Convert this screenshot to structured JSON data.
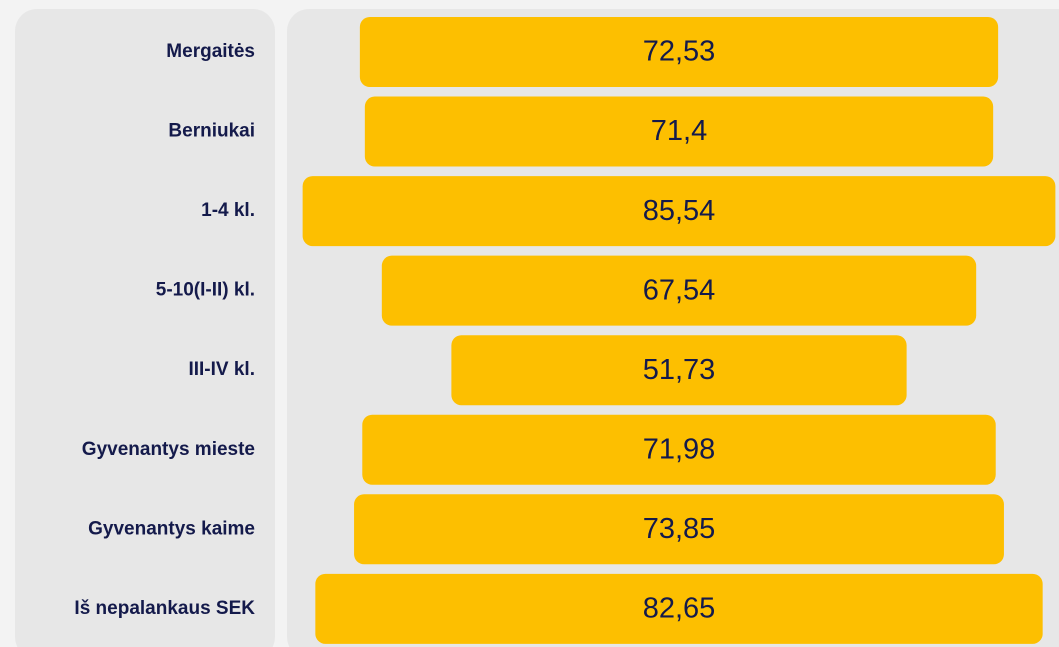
{
  "chart_data": {
    "type": "funnel",
    "categories": [
      "Mergaitės",
      "Berniukai",
      "1-4 kl.",
      "5-10(I-II) kl.",
      "III-IV kl.",
      "Gyvenantys mieste",
      "Gyvenantys kaime",
      "Iš nepalankaus SEK"
    ],
    "values": [
      72.53,
      71.4,
      85.54,
      67.54,
      51.73,
      71.98,
      73.85,
      82.65
    ],
    "value_labels": [
      "72,53",
      "71,4",
      "85,54",
      "67,54",
      "51,73",
      "71,98",
      "73,85",
      "82,65"
    ],
    "color": "#fdbf00"
  }
}
